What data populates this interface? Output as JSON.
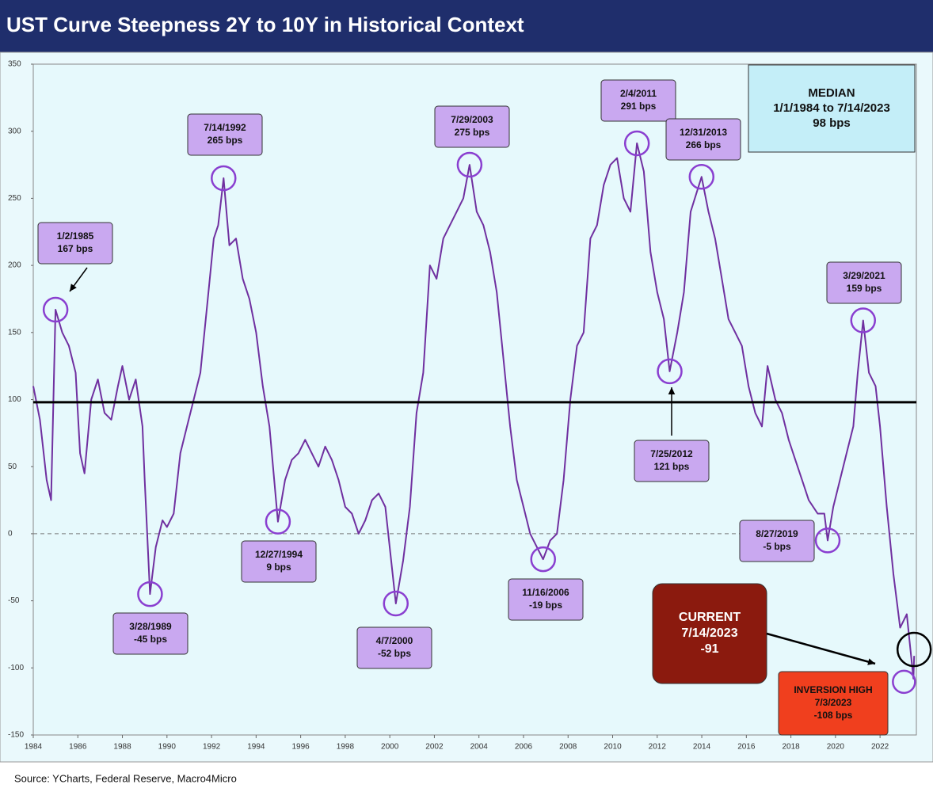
{
  "chart_data": {
    "type": "line",
    "title": "UST Curve Steepness 2Y to 10Y in Historical Context",
    "source": "Source: YCharts, Federal Reserve, Macro4Micro",
    "xlim": [
      1984,
      2023.63
    ],
    "ylim": [
      -150,
      350
    ],
    "xticks": [
      1984,
      1986,
      1988,
      1990,
      1992,
      1994,
      1996,
      1998,
      2000,
      2002,
      2004,
      2006,
      2008,
      2010,
      2012,
      2014,
      2016,
      2018,
      2020,
      2022
    ],
    "yticks": [
      -150,
      -100,
      -50,
      0,
      50,
      100,
      150,
      200,
      250,
      300,
      350
    ],
    "series": [
      {
        "color": "#7030a0",
        "x": [
          1984.0,
          1984.3,
          1984.6,
          1984.8,
          1985.0,
          1985.3,
          1985.6,
          1985.9,
          1986.1,
          1986.3,
          1986.6,
          1986.9,
          1987.2,
          1987.5,
          1987.8,
          1988.0,
          1988.3,
          1988.6,
          1988.9,
          1989.0,
          1989.24,
          1989.5,
          1989.8,
          1990.0,
          1990.3,
          1990.6,
          1990.9,
          1991.2,
          1991.5,
          1991.8,
          1992.1,
          1992.3,
          1992.54,
          1992.8,
          1993.1,
          1993.4,
          1993.7,
          1994.0,
          1994.3,
          1994.6,
          1994.98,
          1995.3,
          1995.6,
          1995.9,
          1996.2,
          1996.5,
          1996.8,
          1997.1,
          1997.4,
          1997.7,
          1998.0,
          1998.3,
          1998.6,
          1998.9,
          1999.2,
          1999.5,
          1999.8,
          2000.27,
          2000.6,
          2000.9,
          2001.2,
          2001.5,
          2001.8,
          2002.1,
          2002.4,
          2002.7,
          2003.0,
          2003.3,
          2003.58,
          2003.9,
          2004.2,
          2004.5,
          2004.8,
          2005.1,
          2005.4,
          2005.7,
          2006.0,
          2006.3,
          2006.6,
          2006.88,
          2007.2,
          2007.5,
          2007.8,
          2008.1,
          2008.4,
          2008.7,
          2009.0,
          2009.3,
          2009.6,
          2009.9,
          2010.2,
          2010.5,
          2010.8,
          2011.09,
          2011.4,
          2011.7,
          2012.0,
          2012.3,
          2012.56,
          2012.9,
          2013.2,
          2013.5,
          2013.99,
          2014.3,
          2014.6,
          2014.9,
          2015.2,
          2015.5,
          2015.8,
          2016.1,
          2016.4,
          2016.7,
          2016.95,
          2017.3,
          2017.6,
          2017.9,
          2018.2,
          2018.5,
          2018.8,
          2019.2,
          2019.5,
          2019.65,
          2019.9,
          2020.2,
          2020.5,
          2020.8,
          2021.0,
          2021.24,
          2021.5,
          2021.8,
          2022.0,
          2022.3,
          2022.6,
          2022.9,
          2023.2,
          2023.5,
          2023.53
        ],
        "values": [
          110,
          85,
          40,
          25,
          167,
          150,
          140,
          120,
          60,
          45,
          100,
          115,
          90,
          85,
          110,
          125,
          100,
          115,
          80,
          40,
          -45,
          -10,
          10,
          5,
          15,
          60,
          80,
          100,
          120,
          170,
          220,
          230,
          265,
          215,
          220,
          190,
          175,
          150,
          110,
          80,
          9,
          40,
          55,
          60,
          70,
          60,
          50,
          65,
          55,
          40,
          20,
          15,
          0,
          10,
          25,
          30,
          20,
          -52,
          -20,
          20,
          90,
          120,
          200,
          190,
          220,
          230,
          240,
          250,
          275,
          240,
          230,
          210,
          180,
          130,
          80,
          40,
          20,
          0,
          -10,
          -19,
          -5,
          0,
          40,
          100,
          140,
          150,
          220,
          230,
          260,
          275,
          280,
          250,
          240,
          291,
          270,
          210,
          180,
          160,
          121,
          150,
          180,
          240,
          266,
          240,
          220,
          190,
          160,
          150,
          140,
          110,
          90,
          80,
          125,
          100,
          90,
          70,
          55,
          40,
          25,
          15,
          15,
          -5,
          20,
          40,
          60,
          80,
          120,
          159,
          120,
          110,
          80,
          20,
          -30,
          -70,
          -60,
          -108,
          -91
        ]
      }
    ],
    "median": {
      "value": 98,
      "lines": [
        "MEDIAN",
        "1/1/1984 to 7/14/2023",
        "98 bps"
      ]
    },
    "annotations": [
      {
        "lines": [
          "1/2/1985",
          "167 bps"
        ],
        "x": 1985.0,
        "y": 167
      },
      {
        "lines": [
          "3/28/1989",
          "-45 bps"
        ],
        "x": 1989.24,
        "y": -45
      },
      {
        "lines": [
          "7/14/1992",
          "265 bps"
        ],
        "x": 1992.54,
        "y": 265
      },
      {
        "lines": [
          "12/27/1994",
          "9 bps"
        ],
        "x": 1994.98,
        "y": 9
      },
      {
        "lines": [
          "4/7/2000",
          "-52 bps"
        ],
        "x": 2000.27,
        "y": -52
      },
      {
        "lines": [
          "7/29/2003",
          "275 bps"
        ],
        "x": 2003.58,
        "y": 275
      },
      {
        "lines": [
          "11/16/2006",
          "-19 bps"
        ],
        "x": 2006.88,
        "y": -19
      },
      {
        "lines": [
          "2/4/2011",
          "291 bps"
        ],
        "x": 2011.09,
        "y": 291
      },
      {
        "lines": [
          "7/25/2012",
          "121 bps"
        ],
        "x": 2012.56,
        "y": 121
      },
      {
        "lines": [
          "12/31/2013",
          "266 bps"
        ],
        "x": 2013.99,
        "y": 266
      },
      {
        "lines": [
          "8/27/2019",
          "-5 bps"
        ],
        "x": 2019.65,
        "y": -5
      },
      {
        "lines": [
          "3/29/2021",
          "159 bps"
        ],
        "x": 2021.24,
        "y": 159
      }
    ],
    "current": {
      "lines": [
        "CURRENT",
        "7/14/2023",
        "-91"
      ],
      "x": 2023.53,
      "y": -91
    },
    "inversion_high": {
      "lines": [
        "INVERSION HIGH",
        "7/3/2023",
        "-108 bps"
      ],
      "x": 2023.5,
      "y": -108
    }
  }
}
